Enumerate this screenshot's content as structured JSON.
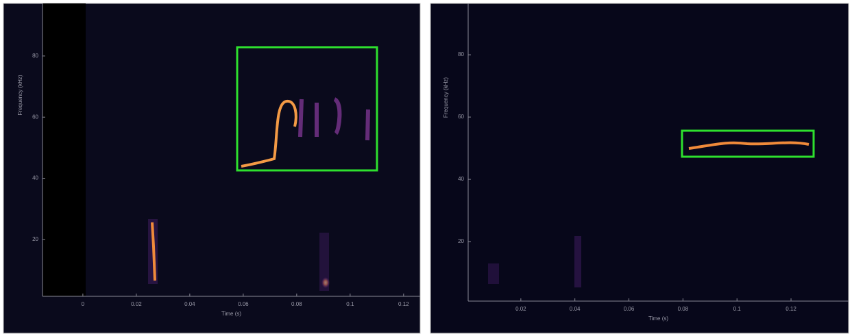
{
  "chart_data": [
    {
      "type": "spectrogram",
      "xlabel": "Time (s)",
      "ylabel": "Frequency (kHz)",
      "xlim": [
        -0.0151,
        0.1262
      ],
      "ylim": [
        1.4,
        97.2
      ],
      "xticks": [
        0,
        0.02,
        0.04,
        0.06,
        0.08,
        0.1,
        0.12
      ],
      "yticks": [
        20,
        40,
        60,
        80
      ]
    },
    {
      "type": "spectrogram",
      "xlabel": "Time (s)",
      "ylabel": "Frequency (kHz)",
      "xlim": [
        0.0005,
        0.1413
      ],
      "ylim": [
        0.9,
        96.5
      ],
      "xticks": [
        0.02,
        0.04,
        0.06,
        0.08,
        0.1,
        0.12
      ],
      "yticks": [
        20,
        40,
        60,
        80
      ]
    }
  ]
}
